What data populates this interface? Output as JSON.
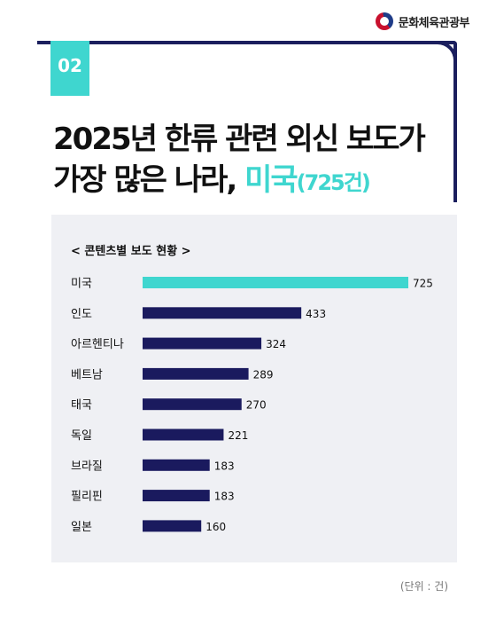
{
  "header": {
    "org_name": "문화체육관광부"
  },
  "badge": {
    "number": "02"
  },
  "title": {
    "line1": "2025년 한류 관련 외신 보도가",
    "line2_prefix": "가장 많은 나라, ",
    "line2_accent": "미국",
    "line2_accent_small": "(725건)"
  },
  "chart_data": {
    "type": "bar",
    "orientation": "horizontal",
    "title": "< 콘텐츠별 보도 현황 >",
    "categories": [
      "미국",
      "인도",
      "아르헨티나",
      "베트남",
      "태국",
      "독일",
      "브라질",
      "필리핀",
      "일본"
    ],
    "values": [
      725,
      433,
      324,
      289,
      270,
      221,
      183,
      183,
      160
    ],
    "value_labels": [
      "725",
      "433",
      "324",
      "289",
      "270",
      "221",
      "183",
      "183",
      "160"
    ],
    "highlight_index": 0,
    "colors": {
      "highlight": "#3fd6cf",
      "bar": "#1a1a5e"
    },
    "unit_label": "(단위 : 건)"
  },
  "colors": {
    "accent": "#3fd6cf",
    "navy": "#1b1f5e",
    "panel_bg": "#eff0f4"
  }
}
